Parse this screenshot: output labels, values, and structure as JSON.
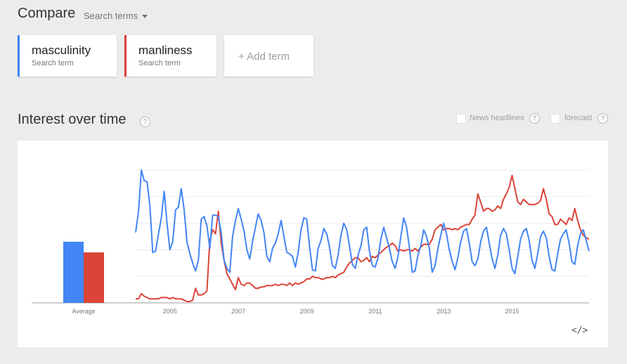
{
  "header": {
    "title": "Compare",
    "search_terms_label": "Search terms"
  },
  "terms": [
    {
      "name": "masculinity",
      "sub": "Search term",
      "color": "#4285f4"
    },
    {
      "name": "manliness",
      "sub": "Search term",
      "color": "#db4437"
    }
  ],
  "add_term_label": "+ Add term",
  "section": {
    "title": "Interest over time",
    "help_icon": "?",
    "options": [
      {
        "label": "News headlines",
        "checked": false
      },
      {
        "label": "forecast",
        "checked": false
      }
    ]
  },
  "embed_icon_text": "</>",
  "chart_data": {
    "type": "line",
    "ylim": [
      0,
      100
    ],
    "x_start": 2004.0,
    "x_step": 0.0833,
    "x_ticks": [
      "2005",
      "2007",
      "2009",
      "2011",
      "2013",
      "2015"
    ],
    "average_label": "Average",
    "averages": [
      {
        "name": "masculinity",
        "value": 46,
        "color": "#4285f4"
      },
      {
        "name": "manliness",
        "value": 38,
        "color": "#db4437"
      }
    ],
    "series": [
      {
        "name": "masculinity",
        "color": "#4285f4",
        "values": [
          53,
          69,
          100,
          92,
          91,
          73,
          38,
          39,
          52,
          64,
          84,
          60,
          40,
          46,
          70,
          72,
          86,
          70,
          46,
          37,
          30,
          24,
          32,
          63,
          65,
          58,
          41,
          66,
          66,
          65,
          53,
          32,
          26,
          23,
          50,
          62,
          71,
          63,
          54,
          40,
          33,
          46,
          57,
          67,
          62,
          53,
          35,
          31,
          41,
          45,
          52,
          62,
          50,
          38,
          37,
          35,
          27,
          38,
          55,
          64,
          63,
          42,
          25,
          24,
          41,
          47,
          56,
          52,
          42,
          28,
          26,
          36,
          51,
          60,
          55,
          43,
          29,
          26,
          36,
          43,
          55,
          57,
          39,
          28,
          27,
          34,
          48,
          57,
          49,
          41,
          31,
          26,
          35,
          50,
          64,
          57,
          42,
          23,
          24,
          36,
          43,
          55,
          50,
          41,
          23,
          28,
          41,
          51,
          60,
          52,
          40,
          31,
          25,
          34,
          46,
          54,
          56,
          45,
          31,
          28,
          33,
          46,
          54,
          57,
          45,
          33,
          26,
          36,
          51,
          56,
          52,
          40,
          26,
          22,
          35,
          48,
          54,
          56,
          47,
          32,
          26,
          37,
          50,
          54,
          49,
          35,
          25,
          24,
          37,
          48,
          52,
          55,
          45,
          31,
          29,
          43,
          52,
          55,
          47,
          39
        ]
      },
      {
        "name": "manliness",
        "color": "#db4437",
        "values": [
          3,
          3,
          7,
          5,
          4,
          3,
          3,
          3,
          3,
          4,
          4,
          4,
          3,
          4,
          3,
          3,
          3,
          2,
          1,
          1,
          2,
          11,
          6,
          6,
          7,
          9,
          47,
          55,
          52,
          69,
          45,
          32,
          22,
          18,
          14,
          10,
          19,
          14,
          13,
          15,
          15,
          13,
          11,
          11,
          12,
          12,
          13,
          13,
          13,
          14,
          13,
          14,
          14,
          13,
          15,
          13,
          15,
          14,
          15,
          16,
          18,
          18,
          20,
          19,
          19,
          18,
          18,
          19,
          19,
          20,
          19,
          21,
          22,
          23,
          27,
          30,
          32,
          34,
          34,
          31,
          32,
          34,
          31,
          35,
          34,
          36,
          38,
          40,
          42,
          43,
          45,
          43,
          39,
          40,
          39,
          40,
          40,
          39,
          41,
          39,
          42,
          44,
          44,
          44,
          48,
          55,
          57,
          59,
          55,
          56,
          56,
          55,
          56,
          55,
          57,
          58,
          59,
          59,
          63,
          66,
          82,
          76,
          69,
          71,
          71,
          69,
          70,
          73,
          71,
          78,
          82,
          87,
          96,
          86,
          76,
          74,
          78,
          76,
          74,
          74,
          74,
          75,
          77,
          86,
          78,
          67,
          65,
          59,
          59,
          63,
          61,
          59,
          64,
          62,
          71,
          62,
          55,
          51,
          49,
          48
        ]
      }
    ]
  }
}
